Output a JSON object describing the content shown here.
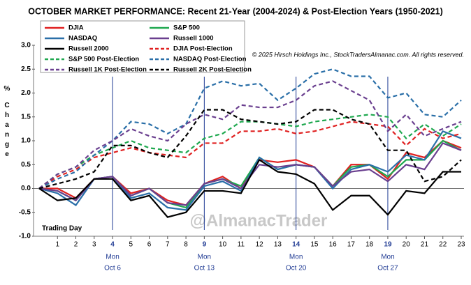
{
  "chart_data": {
    "type": "line",
    "title": "OCTOBER MARKET PERFORMANCE: Recent 21-Year (2004-2024) & Post-Election Years (1950-2021)",
    "copyright": "© 2025 Hirsch Holdings Inc., StockTradersAlmanac.com. All rights reserved.",
    "watermark": "@AlmanacTrader",
    "x_label": "Trading Day",
    "y_label": "% Change",
    "x": [
      0,
      1,
      2,
      3,
      4,
      5,
      6,
      7,
      8,
      9,
      10,
      11,
      12,
      13,
      14,
      15,
      16,
      17,
      18,
      19,
      20,
      21,
      22,
      23
    ],
    "xlim": [
      0,
      23
    ],
    "xticks": [
      1,
      2,
      3,
      4,
      5,
      6,
      7,
      8,
      9,
      10,
      11,
      12,
      13,
      14,
      15,
      16,
      17,
      18,
      19,
      20,
      21,
      22,
      23
    ],
    "ylim": [
      -1,
      3
    ],
    "yticks": [
      {
        "value": 3,
        "label": "3.0"
      },
      {
        "value": 2.5,
        "label": "2.5"
      },
      {
        "value": 2,
        "label": "2.0"
      },
      {
        "value": 1.5,
        "label": "1.5"
      },
      {
        "value": 1,
        "label": "1.0"
      },
      {
        "value": 0.5,
        "label": "0.5"
      },
      {
        "value": 0,
        "label": "0.0"
      },
      {
        "value": -0.5,
        "label": "-0.5"
      },
      {
        "value": -1,
        "label": "-1.0"
      }
    ],
    "annotations": [
      {
        "x": 4,
        "lines": [
          "Mon",
          "Oct 6"
        ]
      },
      {
        "x": 9,
        "lines": [
          "Mon",
          "Oct 13"
        ]
      },
      {
        "x": 14,
        "lines": [
          "Mon",
          "Oct 20"
        ]
      },
      {
        "x": 19,
        "lines": [
          "Mon",
          "Oct 27"
        ]
      }
    ],
    "series": [
      {
        "name": "DJIA",
        "color": "#e02020",
        "dashed": false,
        "values": [
          0,
          0.0,
          -0.2,
          0.2,
          0.25,
          -0.1,
          0.0,
          -0.25,
          -0.35,
          0.1,
          0.25,
          0.0,
          0.6,
          0.55,
          0.6,
          0.45,
          0.05,
          0.5,
          0.5,
          0.2,
          0.75,
          0.65,
          1.0,
          0.85
        ]
      },
      {
        "name": "S&P 500",
        "color": "#1fa84f",
        "dashed": false,
        "values": [
          0,
          -0.05,
          -0.25,
          0.2,
          0.25,
          -0.15,
          0.0,
          -0.3,
          -0.4,
          0.1,
          0.2,
          0.05,
          0.65,
          0.4,
          0.5,
          0.45,
          0.05,
          0.45,
          0.5,
          0.25,
          0.6,
          0.6,
          1.0,
          0.8
        ]
      },
      {
        "name": "NASDAQ",
        "color": "#2a6fa8",
        "dashed": false,
        "values": [
          0,
          -0.1,
          -0.35,
          0.2,
          0.25,
          -0.2,
          -0.1,
          -0.4,
          -0.45,
          0.05,
          0.15,
          -0.05,
          0.65,
          0.4,
          0.5,
          0.45,
          0.0,
          0.4,
          0.5,
          0.35,
          0.7,
          0.6,
          1.2,
          1.05
        ]
      },
      {
        "name": "Russell 1000",
        "color": "#6a3f8f",
        "dashed": false,
        "values": [
          0,
          -0.05,
          -0.25,
          0.2,
          0.25,
          -0.15,
          0.0,
          -0.3,
          -0.35,
          0.1,
          0.2,
          0.0,
          0.5,
          0.45,
          0.5,
          0.45,
          0.05,
          0.35,
          0.4,
          0.15,
          0.5,
          0.4,
          0.95,
          0.8
        ]
      },
      {
        "name": "Russell 2000",
        "color": "#000000",
        "dashed": false,
        "values": [
          0,
          -0.25,
          -0.2,
          0.2,
          0.2,
          -0.25,
          -0.15,
          -0.6,
          -0.5,
          -0.05,
          -0.05,
          -0.1,
          0.6,
          0.35,
          0.3,
          0.1,
          -0.45,
          -0.15,
          -0.15,
          -0.55,
          -0.05,
          -0.1,
          0.35,
          0.35
        ]
      },
      {
        "name": "DJIA Post-Election",
        "color": "#e02020",
        "dashed": true,
        "values": [
          0,
          0.25,
          0.4,
          0.65,
          0.75,
          0.85,
          0.75,
          0.7,
          0.65,
          0.95,
          0.95,
          1.2,
          1.2,
          1.25,
          1.15,
          1.2,
          1.3,
          1.4,
          1.35,
          1.3,
          0.9,
          1.25,
          1.05,
          1.15
        ]
      },
      {
        "name": "S&P 500 Post-Election",
        "color": "#1fa84f",
        "dashed": true,
        "values": [
          0,
          0.3,
          0.45,
          0.7,
          0.85,
          1.0,
          0.85,
          0.8,
          0.75,
          1.05,
          1.15,
          1.4,
          1.4,
          1.35,
          1.3,
          1.4,
          1.45,
          1.5,
          1.55,
          1.5,
          1.05,
          1.35,
          1.1,
          1.35
        ]
      },
      {
        "name": "NASDAQ Post-Election",
        "color": "#2a6fa8",
        "dashed": true,
        "values": [
          0,
          0.2,
          0.35,
          0.7,
          1.0,
          1.4,
          1.35,
          1.15,
          1.35,
          2.1,
          2.25,
          2.15,
          2.2,
          1.85,
          2.1,
          2.4,
          2.5,
          2.35,
          2.35,
          1.9,
          2.0,
          1.55,
          1.5,
          1.85
        ]
      },
      {
        "name": "Russell 1K Post-Election",
        "color": "#6a3f8f",
        "dashed": true,
        "values": [
          0,
          0.3,
          0.45,
          0.8,
          1.0,
          1.25,
          1.1,
          1.0,
          1.35,
          1.55,
          1.45,
          1.75,
          1.7,
          1.7,
          1.85,
          2.15,
          2.25,
          2.05,
          1.85,
          1.2,
          1.55,
          1.1,
          1.25,
          1.4
        ]
      },
      {
        "name": "Russell 2K Post-Election",
        "color": "#000000",
        "dashed": true,
        "values": [
          0,
          0.1,
          0.2,
          0.35,
          0.9,
          0.9,
          0.75,
          0.65,
          1.1,
          1.65,
          1.65,
          1.45,
          1.4,
          1.35,
          1.4,
          1.65,
          1.65,
          1.45,
          1.35,
          0.8,
          0.8,
          0.15,
          0.25,
          0.6
        ]
      }
    ]
  }
}
